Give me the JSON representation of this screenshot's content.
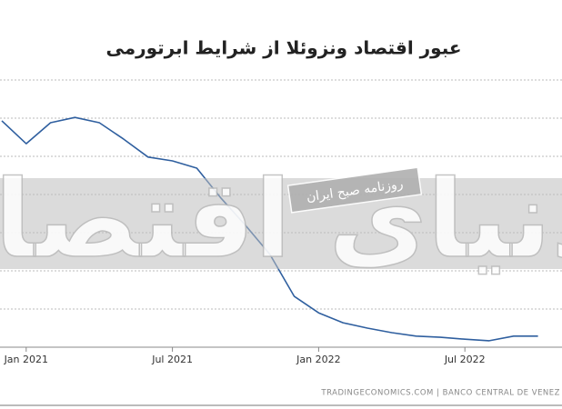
{
  "chart_data": {
    "type": "line",
    "title": "عبور اقتصاد ونزوئلا از شرایط ابرتورمی",
    "categories": [
      null,
      "Jan 2021",
      null,
      null,
      null,
      null,
      null,
      "Jul 2021",
      null,
      null,
      null,
      null,
      null,
      "Jan 2022",
      null,
      null,
      null,
      null,
      null,
      "Jul 2022",
      null,
      null,
      null
    ],
    "values": [
      5.93,
      5.33,
      5.88,
      6.02,
      5.88,
      5.45,
      4.98,
      4.88,
      4.69,
      3.9,
      3.19,
      2.43,
      1.33,
      0.9,
      0.64,
      0.5,
      0.38,
      0.29,
      0.26,
      0.21,
      0.17,
      0.29,
      0.29
    ],
    "color": "#2f5f9f",
    "ylim": [
      0,
      7
    ],
    "yticks": [
      1,
      2,
      3,
      4,
      5,
      6,
      7
    ],
    "grid": true,
    "source": "TRADINGECONOMICS.COM | BANCO CENTRAL DE VENEZ",
    "watermark": {
      "brand": "دنیای اقتصاد",
      "paper": "روزنامه صبح ایران"
    }
  }
}
